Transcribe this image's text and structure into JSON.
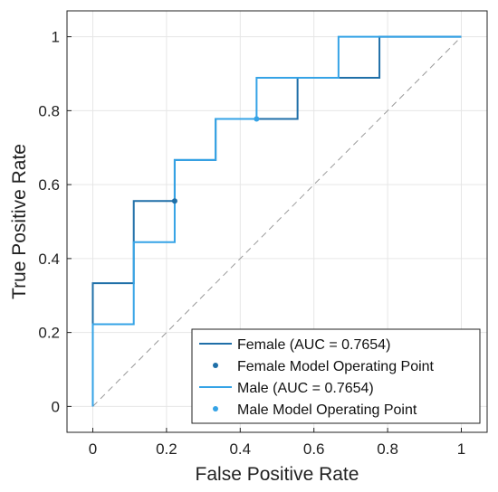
{
  "chart_data": {
    "type": "line",
    "xlabel": "False Positive Rate",
    "ylabel": "True Positive Rate",
    "xlim": [
      -0.07,
      1.07
    ],
    "ylim": [
      -0.07,
      1.07
    ],
    "x_ticks": [
      0,
      0.2,
      0.4,
      0.6,
      0.8,
      1
    ],
    "y_ticks": [
      0,
      0.2,
      0.4,
      0.6,
      0.8,
      1
    ],
    "x_tick_labels": [
      "0",
      "0.2",
      "0.4",
      "0.6",
      "0.8",
      "1"
    ],
    "y_tick_labels": [
      "0",
      "0.2",
      "0.4",
      "0.6",
      "0.8",
      "1"
    ],
    "grid": true,
    "legend_position": "bottom-right",
    "diagonal_reference": true,
    "series": [
      {
        "name": "Female (AUC = 0.7654)",
        "color": "#1f6fa8",
        "style": "line",
        "x": [
          0,
          0,
          0.1111,
          0.1111,
          0.2222,
          0.2222,
          0.3333,
          0.3333,
          0.5556,
          0.5556,
          0.7778,
          0.7778,
          1
        ],
        "y": [
          0,
          0.3333,
          0.3333,
          0.5556,
          0.5556,
          0.6667,
          0.6667,
          0.7778,
          0.7778,
          0.8889,
          0.8889,
          1,
          1
        ]
      },
      {
        "name": "Female Model Operating Point",
        "color": "#1f6fa8",
        "style": "point",
        "x": [
          0.2222
        ],
        "y": [
          0.5556
        ]
      },
      {
        "name": "Male (AUC = 0.7654)",
        "color": "#35a3e6",
        "style": "line",
        "x": [
          0,
          0,
          0.1111,
          0.1111,
          0.2222,
          0.2222,
          0.3333,
          0.3333,
          0.4444,
          0.4444,
          0.6667,
          0.6667,
          1
        ],
        "y": [
          0,
          0.2222,
          0.2222,
          0.4444,
          0.4444,
          0.6667,
          0.6667,
          0.7778,
          0.7778,
          0.8889,
          0.8889,
          1,
          1
        ]
      },
      {
        "name": "Male Model Operating Point",
        "color": "#35a3e6",
        "style": "point",
        "x": [
          0.4444
        ],
        "y": [
          0.7778
        ]
      }
    ]
  }
}
